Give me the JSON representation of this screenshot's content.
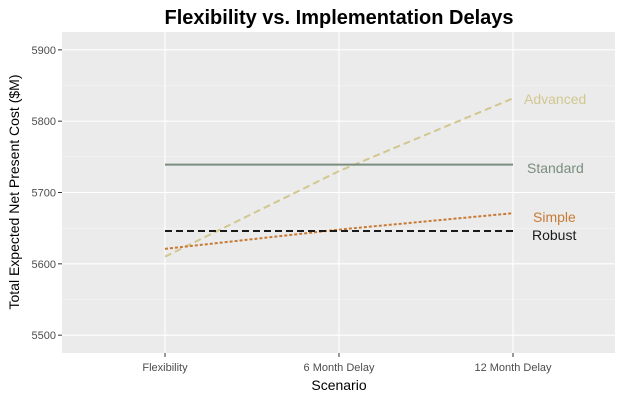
{
  "chart_data": {
    "type": "line",
    "title": "Flexibility vs. Implementation Delays",
    "xlabel": "Scenario",
    "ylabel": "Total Expected Net Present Cost ($M)",
    "categories": [
      "Flexibility",
      "6 Month Delay",
      "12 Month Delay"
    ],
    "ylim": [
      5475,
      5925
    ],
    "yticks": [
      5500,
      5600,
      5700,
      5800,
      5900
    ],
    "ytick_labels": [
      "5500",
      "5600",
      "5700",
      "5800",
      "5900"
    ],
    "grid": true,
    "legend": "direct labels at right end of lines",
    "series": [
      {
        "name": "Advanced",
        "values": [
          5610,
          5730,
          5832
        ],
        "color": "#d1c78f",
        "style": "dashed"
      },
      {
        "name": "Standard",
        "values": [
          5739,
          5739,
          5739
        ],
        "color": "#7a8d7f",
        "style": "solid"
      },
      {
        "name": "Simple",
        "values": [
          5621,
          5648,
          5671
        ],
        "color": "#c87a35",
        "style": "dotted"
      },
      {
        "name": "Robust",
        "values": [
          5646,
          5646,
          5646
        ],
        "color": "#1a1a1a",
        "style": "dashed"
      }
    ]
  }
}
